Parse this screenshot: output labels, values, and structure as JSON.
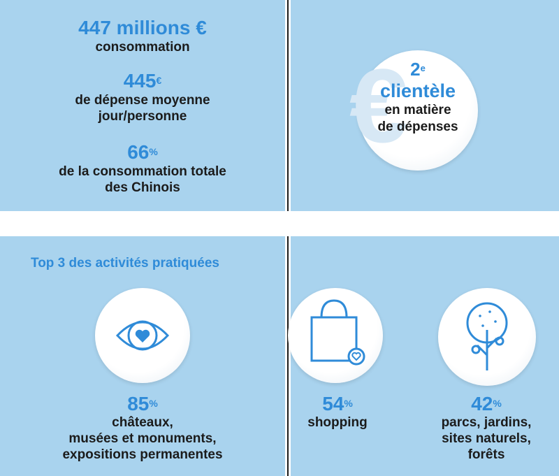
{
  "top_left": {
    "stat1_value": "447 millions €",
    "stat1_label": "consommation",
    "stat2_value": "445",
    "stat2_unit": "€",
    "stat2_label_line1": "de dépense moyenne",
    "stat2_label_line2": "jour/personne",
    "stat3_value": "66",
    "stat3_unit": "%",
    "stat3_label_line1": "de la consommation totale",
    "stat3_label_line2": "des Chinois"
  },
  "top_right": {
    "rank_value": "2",
    "rank_suffix": "e",
    "rank_word": "clientèle",
    "rank_label_line1": "en matière",
    "rank_label_line2": "de dépenses",
    "watermark_symbol": "€"
  },
  "bottom": {
    "section_title": "Top 3 des activités pratiquées",
    "activities": [
      {
        "icon": "eye-heart-icon",
        "value": "85",
        "unit": "%",
        "label_line1": "châteaux,",
        "label_line2": "musées et monuments,",
        "label_line3": "expositions permanentes"
      },
      {
        "icon": "shopping-bag-icon",
        "value": "54",
        "unit": "%",
        "label_line1": "shopping"
      },
      {
        "icon": "tree-icon",
        "value": "42",
        "unit": "%",
        "label_line1": "parcs, jardins,",
        "label_line2": "sites naturels,",
        "label_line3": "forêts"
      }
    ]
  },
  "colors": {
    "panel_bg": "#a9d3ee",
    "accent_blue": "#2f8bd8",
    "text_dark": "#1b1b1b"
  }
}
